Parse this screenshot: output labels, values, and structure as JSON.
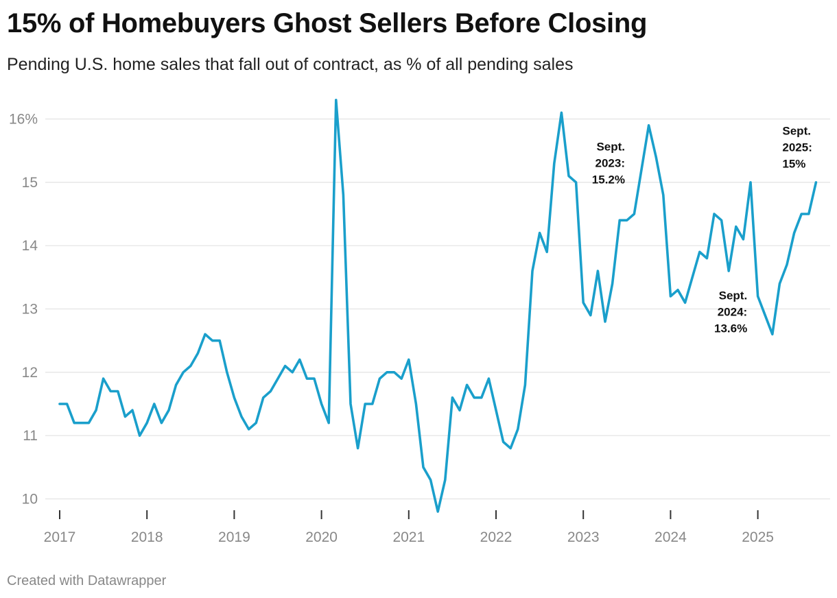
{
  "title": "15% of Homebuyers Ghost Sellers Before Closing",
  "subtitle": "Pending U.S. home sales that fall out of contract, as % of all pending sales",
  "footer": "Created with Datawrapper",
  "colors": {
    "line": "#1a9fcb",
    "grid": "#e2e2e2",
    "axis": "#333333",
    "tick_text": "#888888"
  },
  "chart_data": {
    "type": "line",
    "title": "15% of Homebuyers Ghost Sellers Before Closing",
    "subtitle": "Pending U.S. home sales that fall out of contract, as % of all pending sales",
    "xlabel": "",
    "ylabel": "",
    "start": "2017-01",
    "frequency": "monthly",
    "xlim": [
      "2017-01",
      "2025-09"
    ],
    "ylim": [
      9.8,
      16.4
    ],
    "grid": true,
    "legend": "none",
    "x_ticks": [
      "2017",
      "2018",
      "2019",
      "2020",
      "2021",
      "2022",
      "2023",
      "2024",
      "2025"
    ],
    "y_ticks": [
      {
        "value": 10,
        "label": "10"
      },
      {
        "value": 11,
        "label": "11"
      },
      {
        "value": 12,
        "label": "12"
      },
      {
        "value": 13,
        "label": "13"
      },
      {
        "value": 14,
        "label": "14"
      },
      {
        "value": 15,
        "label": "15"
      },
      {
        "value": 16,
        "label": "16%"
      }
    ],
    "values": [
      11.5,
      11.5,
      11.2,
      11.2,
      11.2,
      11.4,
      11.9,
      11.7,
      11.7,
      11.3,
      11.4,
      11.0,
      11.2,
      11.5,
      11.2,
      11.4,
      11.8,
      12.0,
      12.1,
      12.3,
      12.6,
      12.5,
      12.5,
      12.0,
      11.6,
      11.3,
      11.1,
      11.2,
      11.6,
      11.7,
      11.9,
      12.1,
      12.0,
      12.2,
      11.9,
      11.9,
      11.5,
      11.2,
      16.3,
      14.8,
      11.5,
      10.8,
      11.5,
      11.5,
      11.9,
      12.0,
      12.0,
      11.9,
      12.2,
      11.5,
      10.5,
      10.3,
      9.8,
      10.3,
      11.6,
      11.4,
      11.8,
      11.6,
      11.6,
      11.9,
      11.4,
      10.9,
      10.8,
      11.1,
      11.8,
      13.6,
      14.2,
      13.9,
      15.3,
      16.1,
      15.1,
      15.0,
      13.1,
      12.9,
      13.6,
      12.8,
      13.4,
      14.4,
      14.4,
      14.5,
      15.2,
      15.9,
      15.4,
      14.8,
      13.2,
      13.3,
      13.1,
      13.5,
      13.9,
      13.8,
      14.5,
      14.4,
      13.6,
      14.3,
      14.1,
      15.0,
      13.2,
      12.9,
      12.6,
      13.4,
      13.7,
      14.2,
      14.5,
      14.5,
      15.0
    ],
    "annotations": [
      {
        "lines": [
          "Sept.",
          "2023:",
          "15.2%"
        ],
        "index": 80,
        "anchor": "end",
        "dx": -24,
        "top_value": 15.5
      },
      {
        "lines": [
          "Sept.",
          "2024:",
          "13.6%"
        ],
        "index": 92,
        "anchor": "end",
        "dx": 27,
        "top_value": 13.15
      },
      {
        "lines": [
          "Sept.",
          "2025:",
          "15%"
        ],
        "index": 104,
        "anchor": "start",
        "dx": -49,
        "top_value": 15.75
      }
    ]
  }
}
